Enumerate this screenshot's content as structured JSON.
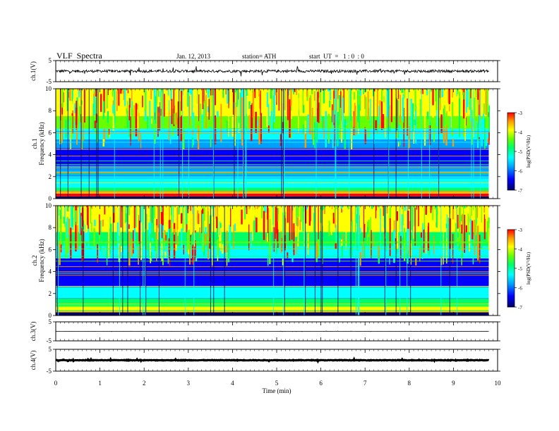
{
  "header": {
    "title": "VLF  Spectra",
    "date": "Jan. 12, 2013",
    "station": "station= ATH",
    "start": "start  UT  =   1 : 0  : 0"
  },
  "chart_data": {
    "type": "heatmap",
    "xlabel": "Time  (min)",
    "xlim": [
      0,
      10
    ],
    "x_ticks": [
      "0",
      "1",
      "2",
      "3",
      "4",
      "5",
      "6",
      "7",
      "8",
      "9",
      "10"
    ],
    "data_end_minute": 9.8,
    "panels": [
      {
        "id": "ch1-waveform",
        "kind": "waveform",
        "ylabel": "ch.1(V)",
        "ylim": [
          -5,
          5
        ],
        "y_ticks": [
          "5",
          "-5"
        ],
        "trace_level": 0,
        "trace_range": [
          -2.5,
          2.5
        ],
        "description_color": "#000000"
      },
      {
        "id": "ch1-spectrogram",
        "kind": "spectrogram",
        "ylabel": "ch.1\nFrequency (kHz)",
        "ylabel_lines": [
          "ch.1",
          "Frequency  (kHz)"
        ],
        "ylim_khz": [
          0,
          10
        ],
        "y_ticks": [
          "0",
          "2",
          "4",
          "6",
          "8",
          "10"
        ],
        "colorbar": {
          "label": "log(PSD(V²/Hz)",
          "label_super": "2",
          "range": [
            -7,
            -3
          ],
          "ticks": [
            "-3",
            "-4",
            "-5",
            "-6",
            "-7"
          ]
        },
        "bands": [
          {
            "f_from": 0.0,
            "f_to": 0.2,
            "log_psd": -6.6
          },
          {
            "f_from": 0.2,
            "f_to": 0.45,
            "log_psd": -3.2
          },
          {
            "f_from": 0.45,
            "f_to": 0.7,
            "log_psd": -3.6
          },
          {
            "f_from": 0.7,
            "f_to": 1.0,
            "log_psd": -5.0
          },
          {
            "f_from": 1.0,
            "f_to": 2.0,
            "log_psd": -5.4
          },
          {
            "f_from": 2.0,
            "f_to": 3.0,
            "log_psd": -5.8
          },
          {
            "f_from": 3.0,
            "f_to": 4.6,
            "log_psd": -6.4
          },
          {
            "f_from": 4.6,
            "f_to": 5.4,
            "log_psd": -6.0
          },
          {
            "f_from": 5.4,
            "f_to": 6.3,
            "log_psd": -5.3
          },
          {
            "f_from": 6.3,
            "f_to": 7.5,
            "log_psd": -4.7
          },
          {
            "f_from": 7.5,
            "f_to": 10.0,
            "log_psd": -4.3
          }
        ]
      },
      {
        "id": "ch2-spectrogram",
        "kind": "spectrogram",
        "ylabel": "ch.2\nFrequency (kHz)",
        "ylabel_lines": [
          "ch.2",
          "Frequency  (kHz)"
        ],
        "ylim_khz": [
          0,
          10
        ],
        "y_ticks": [
          "0",
          "2",
          "4",
          "6",
          "8",
          "10"
        ],
        "colorbar": {
          "label": "log(PSD(V²/Hz)",
          "label_super": "2",
          "range": [
            -7,
            -3
          ],
          "ticks": [
            "-3",
            "-4",
            "-5",
            "-6",
            "-7"
          ]
        },
        "bands": [
          {
            "f_from": 0.0,
            "f_to": 0.3,
            "log_psd": -6.6
          },
          {
            "f_from": 0.3,
            "f_to": 0.8,
            "log_psd": -4.2
          },
          {
            "f_from": 0.8,
            "f_to": 1.6,
            "log_psd": -5.0
          },
          {
            "f_from": 1.6,
            "f_to": 2.6,
            "log_psd": -5.5
          },
          {
            "f_from": 2.6,
            "f_to": 4.2,
            "log_psd": -6.2
          },
          {
            "f_from": 4.2,
            "f_to": 5.2,
            "log_psd": -6.4
          },
          {
            "f_from": 5.2,
            "f_to": 6.3,
            "log_psd": -5.6
          },
          {
            "f_from": 6.3,
            "f_to": 7.6,
            "log_psd": -4.9
          },
          {
            "f_from": 7.6,
            "f_to": 10.0,
            "log_psd": -4.1
          }
        ]
      },
      {
        "id": "ch3-waveform",
        "kind": "waveform",
        "ylabel": "ch.3(V)",
        "ylim": [
          -5,
          5
        ],
        "y_ticks": [
          "5",
          "-5"
        ],
        "trace_level": 0,
        "trace_range": [
          -0.2,
          0.2
        ]
      },
      {
        "id": "ch4-waveform",
        "kind": "waveform",
        "ylabel": "ch.4(V)",
        "ylim": [
          -5,
          5
        ],
        "y_ticks": [
          "5",
          "-5"
        ],
        "trace_level": 0,
        "trace_range": [
          -0.5,
          0.5
        ]
      }
    ],
    "colorscale": [
      "#000066",
      "#0000ff",
      "#00a0ff",
      "#00ffff",
      "#00ff66",
      "#66ff00",
      "#ffff00",
      "#ff9900",
      "#ff0000"
    ],
    "grid": false,
    "legend": "colorbars-right"
  }
}
